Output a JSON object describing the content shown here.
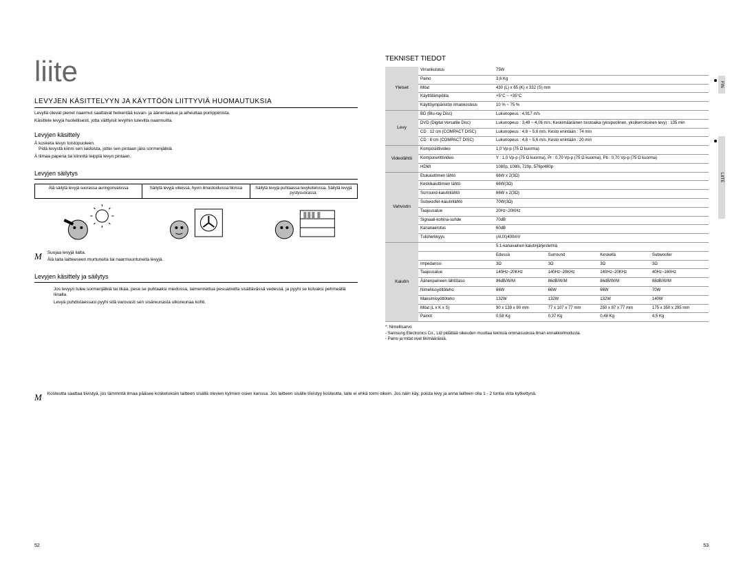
{
  "page": {
    "left_number": "52",
    "right_number": "53",
    "main_title": "liite",
    "section1_heading": "LEVYJEN KÄSITTELYYN JA KÄYTTÖÖN LIITTYVIÄ HUOMAUTUKSIA",
    "section1_body1": "Levyllä olevat pienet naarmut saattavat heikentää kuvan- ja äänenlaatua ja aiheuttaa pomppimista.",
    "section1_body2": "Käsittele levyjä huolellisesti, jotta välttyisit levyihin tulevilta naarmuilta.",
    "handling_heading": "Levyjen käsittely",
    "handling_b1": "kosketa levyn toistopuoleen.",
    "handling_b2": "Pidä levystä kiinni sen laidoista, jottei sen pintaan jäisi sormenjälkiä.",
    "handling_b3": "liimaa paperia tai kiinnitä teippiä levyn pintaan.",
    "storage_heading": "Levyjen säilytys",
    "storage_c1": "Älä säilytä levyjä suorassa auringonvalossa",
    "storage_c2": "Säilytä levyjä viileissä, hyvin ilmastoiduissa tiloissa",
    "storage_c3": "Säilytä levyjä puhtaassa levykotelossa. Säilytä levyjä pystysuorassa.",
    "note1_l1": "Suojaa levyjä lialta.",
    "note1_l2": "Älä laita laitteeseen murtuneita tai naarmuuntuneita levyjä.",
    "clean_heading": "Levyjen käsittely ja säilytys",
    "clean_body1": "Jos levyyn tulee sormenjälkiä tai likaa, pese se puhtaaksi miedossa, laimennettua pesuainetta sisältävässä vedessä, ja pyyhi se kuivaksi pehmeällä liinalla.",
    "clean_body2": "Levyä puhdistaessasi pyyhi sitä varovasti sen sisäreunasta ulkoreunaa kohti.",
    "wide_note_l1": "Kosteutta saattaa tiivistyä, jos lämmintä ilmaa pääsee kosketuksiin laitteen sisällä olevien kylmien osien kanssa. Jos laitteen sisälle tiivistyy kosteutta, laite ei ehkä toimi oikein. Jos näin käy, poista levy ja anna laitteen olla 1 - 2 tuntia virta kytkettynä.",
    "spec_title": "TEKNISET TIEDOT"
  },
  "tabs": {
    "t1": "FIN",
    "t2": "LIITE"
  },
  "spec_groups": [
    {
      "cat": "Yleiset",
      "rows": [
        [
          "Virrankulutus",
          "75W"
        ],
        [
          "Paino",
          "3,6 Kg"
        ],
        [
          "Mitat",
          "430 (L) x 65 (K) x 332 (S) mm"
        ],
        [
          "Käyttölämpötila",
          "+5°C ~ +35°C"
        ],
        [
          "Käyttöympäristön ilmankosteus",
          "10 % ~ 75 %"
        ]
      ]
    },
    {
      "cat": "Levy",
      "rows": [
        [
          "BD (Blu-ray Disc)",
          "Lukunopeus : 4,917 m/s"
        ],
        [
          "DVD (Digital Versatile Disc)",
          "Lukunopeus : 3,49 ~ 4,06 m/s. Keskimääräinen toistoaika (yksipuolinen, yksikerroksinen levy) : 135 min"
        ],
        [
          "CD : 12 cm (COMPACT DISC)",
          "Lukunopeus : 4,8 ~ 5,6 m/s. Kesto enintään : 74 min"
        ],
        [
          "CD : 8 cm (COMPACT DISC)",
          "Lukunopeus : 4,8 ~ 5,6 m/s. Kesto enintään : 20 min"
        ]
      ]
    },
    {
      "cat": "Videolähtö",
      "rows": [
        [
          "Komposiittivideo",
          "1,0 Vp-p (75 Ω kuorma)"
        ],
        [
          "Komponenttivideo",
          "Y : 1,0 Vp-p (75 Ω kuorma), Pr : 0,70 Vp-p (75 Ω kuorma), Pb : 0,70 Vp-p (75 Ω kuorma)"
        ],
        [
          "HDMI",
          "1080p, 1080i, 720p, 576p/480p"
        ]
      ]
    },
    {
      "cat": "Vahvistin",
      "rows": [
        [
          "Etukaiuttimen lähtö",
          "66W x 2(3Ω)"
        ],
        [
          "Keskikaiuttimien lähtö",
          "66W(3Ω)"
        ],
        [
          "Surround-kaiutinlähtö",
          "66W x 2(3Ω)"
        ],
        [
          "Subwoofer-kaiutinlähtö",
          "70W(3Ω)"
        ],
        [
          "Taajuusalue",
          "20Hz~20KHz"
        ],
        [
          "Signaali-kohina-suhde",
          "70dB"
        ],
        [
          "Kanavaerotus",
          "60dB"
        ],
        [
          "Tuloherkkyys",
          "(AUX)400mV"
        ]
      ]
    }
  ],
  "speaker_table": {
    "cat": "Kaiutin",
    "header": [
      "",
      "5.1-kanavainen kaiutinjärjestelmä"
    ],
    "sub": [
      "",
      "Edessä",
      "Surround",
      "Keskellä",
      "Subwoofer"
    ],
    "rows": [
      [
        "Impedanssi",
        "3Ω",
        "3Ω",
        "3Ω",
        "3Ω"
      ],
      [
        "Taajuusalue",
        "140Hz~20KHz",
        "140Hz~20KHz",
        "140Hz~20KHz",
        "40Hz~160Hz"
      ],
      [
        "Äänenpaineen lähtötaso",
        "86dB/W/M",
        "86dB/W/M",
        "86dB/W/M",
        "88dB/W/M"
      ],
      [
        "Nimellissyöttöteho",
        "66W",
        "66W",
        "66W",
        "70W"
      ],
      [
        "Maksimisyöttöteho",
        "132W",
        "132W",
        "132W",
        "140W"
      ]
    ],
    "dims_label": "Mitat (L x K x S)",
    "dims": [
      "90 x 139 x 90 mm",
      "77 x 107 x 77 mm",
      "250 x 87 x 77 mm",
      "175 x 350 x 295 mm"
    ],
    "weight_label": "Painot",
    "weights": [
      "0,58 Kg",
      "0,37 Kg",
      "0,48 Kg",
      "4,5 Kg"
    ]
  },
  "spec_notes": {
    "n1": "*: Nimellisarvo",
    "n2": "- Samsung Electronics Co., Ltd pidättää oikeuden muuttaa teknisiä ominaisuuksia ilman ennakkoilmoitusta.",
    "n3": "- Paino ja mitat ovat likimääräisiä."
  }
}
